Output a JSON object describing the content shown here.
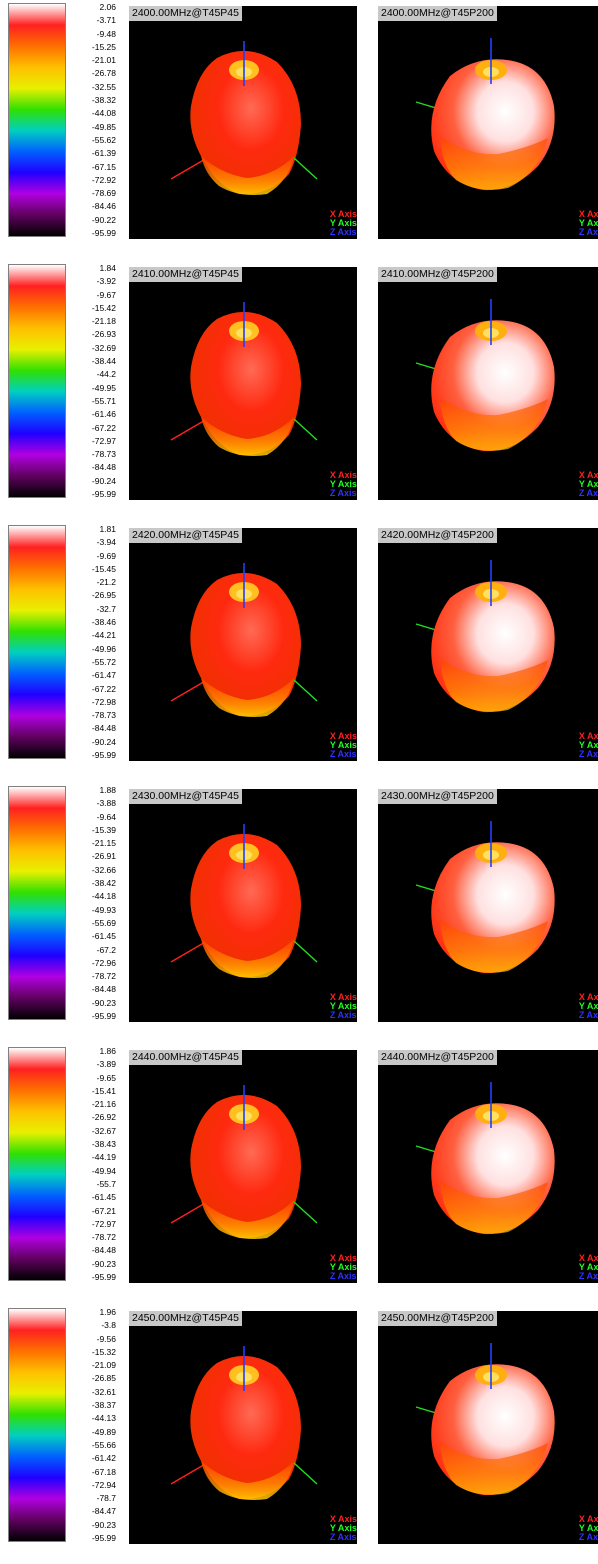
{
  "chart_data": {
    "type": "3d-radiation-pattern",
    "legend_labels": {
      "x": "X Axis",
      "y": "Y Axis",
      "z": "Z Axis"
    },
    "scale_colors": [
      "#ffffff",
      "#ff2020",
      "#ff7000",
      "#ffc000",
      "#e8f000",
      "#30e000",
      "#00d0c0",
      "#0060ff",
      "#2000ff",
      "#b000e0",
      "#600060",
      "#000000"
    ],
    "axis_colors": {
      "x": "#ff2020",
      "y": "#20e020",
      "z": "#2040ff"
    },
    "rows": [
      {
        "scale": [
          "2.06",
          "-3.71",
          "-9.48",
          "-15.25",
          "-21.01",
          "-26.78",
          "-32.55",
          "-38.32",
          "-44.08",
          "-49.85",
          "-55.62",
          "-61.39",
          "-67.15",
          "-72.92",
          "-78.69",
          "-84.46",
          "-90.22",
          "-95.99"
        ],
        "panels": [
          "2400.00MHz@T45P45",
          "2400.00MHz@T45P200"
        ]
      },
      {
        "scale": [
          "1.84",
          "-3.92",
          "-9.67",
          "-15.42",
          "-21.18",
          "-26.93",
          "-32.69",
          "-38.44",
          "-44.2",
          "-49.95",
          "-55.71",
          "-61.46",
          "-67.22",
          "-72.97",
          "-78.73",
          "-84.48",
          "-90.24",
          "-95.99"
        ],
        "panels": [
          "2410.00MHz@T45P45",
          "2410.00MHz@T45P200"
        ]
      },
      {
        "scale": [
          "1.81",
          "-3.94",
          "-9.69",
          "-15.45",
          "-21.2",
          "-26.95",
          "-32.7",
          "-38.46",
          "-44.21",
          "-49.96",
          "-55.72",
          "-61.47",
          "-67.22",
          "-72.98",
          "-78.73",
          "-84.48",
          "-90.24",
          "-95.99"
        ],
        "panels": [
          "2420.00MHz@T45P45",
          "2420.00MHz@T45P200"
        ]
      },
      {
        "scale": [
          "1.88",
          "-3.88",
          "-9.64",
          "-15.39",
          "-21.15",
          "-26.91",
          "-32.66",
          "-38.42",
          "-44.18",
          "-49.93",
          "-55.69",
          "-61.45",
          "-67.2",
          "-72.96",
          "-78.72",
          "-84.48",
          "-90.23",
          "-95.99"
        ],
        "panels": [
          "2430.00MHz@T45P45",
          "2430.00MHz@T45P200"
        ]
      },
      {
        "scale": [
          "1.86",
          "-3.89",
          "-9.65",
          "-15.41",
          "-21.16",
          "-26.92",
          "-32.67",
          "-38.43",
          "-44.19",
          "-49.94",
          "-55.7",
          "-61.45",
          "-67.21",
          "-72.97",
          "-78.72",
          "-84.48",
          "-90.23",
          "-95.99"
        ],
        "panels": [
          "2440.00MHz@T45P45",
          "2440.00MHz@T45P200"
        ]
      },
      {
        "scale": [
          "1.96",
          "-3.8",
          "-9.56",
          "-15.32",
          "-21.09",
          "-26.85",
          "-32.61",
          "-38.37",
          "-44.13",
          "-49.89",
          "-55.66",
          "-61.42",
          "-67.18",
          "-72.94",
          "-78.7",
          "-84.47",
          "-90.23",
          "-95.99"
        ],
        "panels": [
          "2450.00MHz@T45P45",
          "2450.00MHz@T45P200"
        ]
      }
    ]
  }
}
